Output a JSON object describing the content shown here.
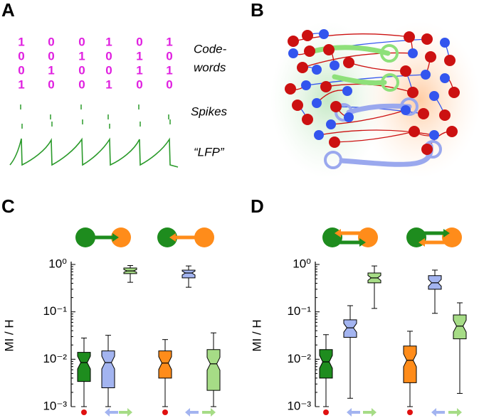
{
  "panel_labels": [
    "A",
    "B",
    "C",
    "D"
  ],
  "codewords": {
    "label": [
      "Code-",
      "words"
    ],
    "columns": [
      [
        1,
        0,
        0,
        1
      ],
      [
        0,
        0,
        1,
        0
      ],
      [
        0,
        1,
        0,
        0
      ],
      [
        1,
        0,
        0,
        1
      ],
      [
        0,
        1,
        1,
        0
      ],
      [
        1,
        0,
        1,
        0
      ]
    ]
  },
  "spikes_label": "Spikes",
  "lfp_label": "“LFP”",
  "chart_data": [
    {
      "type": "box",
      "y_label": "MI / H",
      "log_scale": true,
      "ylim": [
        0.001,
        1
      ],
      "yticks": [
        {
          "value": 0.001,
          "label": "10⁻³"
        },
        {
          "value": 0.01,
          "label": "10⁻²"
        },
        {
          "value": 0.1,
          "label": "10⁻¹"
        },
        {
          "value": 1,
          "label": "10⁰"
        }
      ],
      "categories": [
        null,
        null,
        null,
        null,
        null,
        null
      ],
      "boxes": [
        {
          "color": "#1e8c1e",
          "whisker_low": 0.001,
          "q1": 0.0034,
          "median": 0.0085,
          "q3": 0.014,
          "whisker_high": 0.028
        },
        {
          "color": "#a3b4f0",
          "whisker_low": 0.001,
          "q1": 0.0025,
          "median": 0.0085,
          "q3": 0.015,
          "whisker_high": 0.032
        },
        {
          "color": "#a6dc86",
          "whisker_low": 0.42,
          "q1": 0.64,
          "median": 0.73,
          "q3": 0.84,
          "whisker_high": 0.95
        },
        {
          "color": "#ff8c1a",
          "whisker_low": 0.001,
          "q1": 0.004,
          "median": 0.0083,
          "q3": 0.015,
          "whisker_high": 0.026
        },
        {
          "color": "#a3b4f0",
          "whisker_low": 0.33,
          "q1": 0.52,
          "median": 0.66,
          "q3": 0.76,
          "whisker_high": 0.93
        },
        {
          "color": "#a6dc86",
          "whisker_low": 0.001,
          "q1": 0.0022,
          "median": 0.008,
          "q3": 0.016,
          "whisker_high": 0.036
        }
      ]
    },
    {
      "type": "box",
      "y_label": "MI / H",
      "log_scale": true,
      "ylim": [
        0.001,
        1
      ],
      "yticks": [
        {
          "value": 0.001,
          "label": "10⁻³"
        },
        {
          "value": 0.01,
          "label": "10⁻²"
        },
        {
          "value": 0.1,
          "label": "10⁻¹"
        },
        {
          "value": 1,
          "label": "10⁰"
        }
      ],
      "categories": [
        null,
        null,
        null,
        null,
        null,
        null
      ],
      "boxes": [
        {
          "color": "#1e8c1e",
          "whisker_low": 0.001,
          "q1": 0.004,
          "median": 0.0088,
          "q3": 0.016,
          "whisker_high": 0.033
        },
        {
          "color": "#a3b4f0",
          "whisker_low": 0.0015,
          "q1": 0.029,
          "median": 0.046,
          "q3": 0.068,
          "whisker_high": 0.135
        },
        {
          "color": "#a6dc86",
          "whisker_low": 0.118,
          "q1": 0.41,
          "median": 0.52,
          "q3": 0.66,
          "whisker_high": 0.93
        },
        {
          "color": "#ff8c1a",
          "whisker_low": 0.001,
          "q1": 0.0032,
          "median": 0.0095,
          "q3": 0.019,
          "whisker_high": 0.039
        },
        {
          "color": "#a3b4f0",
          "whisker_low": 0.093,
          "q1": 0.3,
          "median": 0.41,
          "q3": 0.58,
          "whisker_high": 0.76
        },
        {
          "color": "#a6dc86",
          "whisker_low": 0.0019,
          "q1": 0.027,
          "median": 0.05,
          "q3": 0.086,
          "whisker_high": 0.155
        }
      ]
    }
  ]
}
